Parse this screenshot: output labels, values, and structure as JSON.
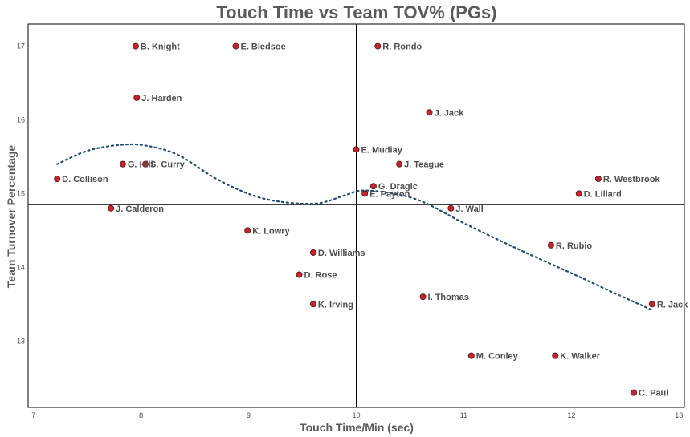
{
  "chart_data": {
    "type": "scatter",
    "title": "Touch Time vs Team TOV% (PGs)",
    "xlabel": "Touch Time/Min (sec)",
    "ylabel": "Team Turnover Percentage",
    "xlim": [
      6.95,
      13.05
    ],
    "ylim": [
      12.1,
      17.3
    ],
    "xticks": [
      "7",
      "8",
      "9",
      "10",
      "11",
      "12",
      "13"
    ],
    "yticks": [
      "13",
      "14",
      "15",
      "16",
      "17"
    ],
    "xtick_values": [
      7,
      8,
      9,
      10,
      11,
      12,
      13
    ],
    "ytick_values": [
      13,
      14,
      15,
      16,
      17
    ],
    "grid": false,
    "reference_lines": {
      "x": 10.0,
      "y": 14.85
    },
    "point_color": "#c0262c",
    "trend_color": "#1f4e79",
    "points": [
      {
        "label": "B. Knight",
        "x": 7.95,
        "y": 17.0
      },
      {
        "label": "E. Bledsoe",
        "x": 8.88,
        "y": 17.0
      },
      {
        "label": "R. Rondo",
        "x": 10.2,
        "y": 17.0
      },
      {
        "label": "J. Harden",
        "x": 7.96,
        "y": 16.3
      },
      {
        "label": "J. Jack",
        "x": 10.68,
        "y": 16.1
      },
      {
        "label": "E. Mudiay",
        "x": 10.0,
        "y": 15.6
      },
      {
        "label": "G. Hill",
        "x": 7.83,
        "y": 15.4
      },
      {
        "label": "S. Curry",
        "x": 8.04,
        "y": 15.4
      },
      {
        "label": "J. Teague",
        "x": 10.4,
        "y": 15.4
      },
      {
        "label": "D. Collison",
        "x": 7.22,
        "y": 15.2
      },
      {
        "label": "R. Westbrook",
        "x": 12.25,
        "y": 15.2
      },
      {
        "label": "G. Dragic",
        "x": 10.16,
        "y": 15.1
      },
      {
        "label": "E. Payton",
        "x": 10.08,
        "y": 15.0
      },
      {
        "label": "D. Lillard",
        "x": 12.07,
        "y": 15.0
      },
      {
        "label": "J. Calderon",
        "x": 7.72,
        "y": 14.8
      },
      {
        "label": "J. Wall",
        "x": 10.88,
        "y": 14.8
      },
      {
        "label": "K. Lowry",
        "x": 8.99,
        "y": 14.5
      },
      {
        "label": "R. Rubio",
        "x": 11.81,
        "y": 14.3
      },
      {
        "label": "D. Williams",
        "x": 9.6,
        "y": 14.2
      },
      {
        "label": "D. Rose",
        "x": 9.47,
        "y": 13.9
      },
      {
        "label": "I. Thomas",
        "x": 10.62,
        "y": 13.6
      },
      {
        "label": "K. Irving",
        "x": 9.6,
        "y": 13.5
      },
      {
        "label": "R. Jack",
        "x": 12.75,
        "y": 13.5
      },
      {
        "label": "M. Conley",
        "x": 11.07,
        "y": 12.8
      },
      {
        "label": "K. Walker",
        "x": 11.85,
        "y": 12.8
      },
      {
        "label": "C. Paul",
        "x": 12.58,
        "y": 12.3
      }
    ],
    "trend": [
      {
        "x": 7.22,
        "y": 15.4
      },
      {
        "x": 7.5,
        "y": 15.58
      },
      {
        "x": 7.8,
        "y": 15.66
      },
      {
        "x": 8.05,
        "y": 15.65
      },
      {
        "x": 8.35,
        "y": 15.52
      },
      {
        "x": 8.7,
        "y": 15.2
      },
      {
        "x": 9.05,
        "y": 14.97
      },
      {
        "x": 9.35,
        "y": 14.88
      },
      {
        "x": 9.65,
        "y": 14.87
      },
      {
        "x": 9.9,
        "y": 14.98
      },
      {
        "x": 10.05,
        "y": 15.04
      },
      {
        "x": 10.3,
        "y": 15.01
      },
      {
        "x": 10.6,
        "y": 14.9
      },
      {
        "x": 11.0,
        "y": 14.6
      },
      {
        "x": 11.5,
        "y": 14.25
      },
      {
        "x": 12.0,
        "y": 13.92
      },
      {
        "x": 12.4,
        "y": 13.65
      },
      {
        "x": 12.75,
        "y": 13.42
      }
    ]
  }
}
